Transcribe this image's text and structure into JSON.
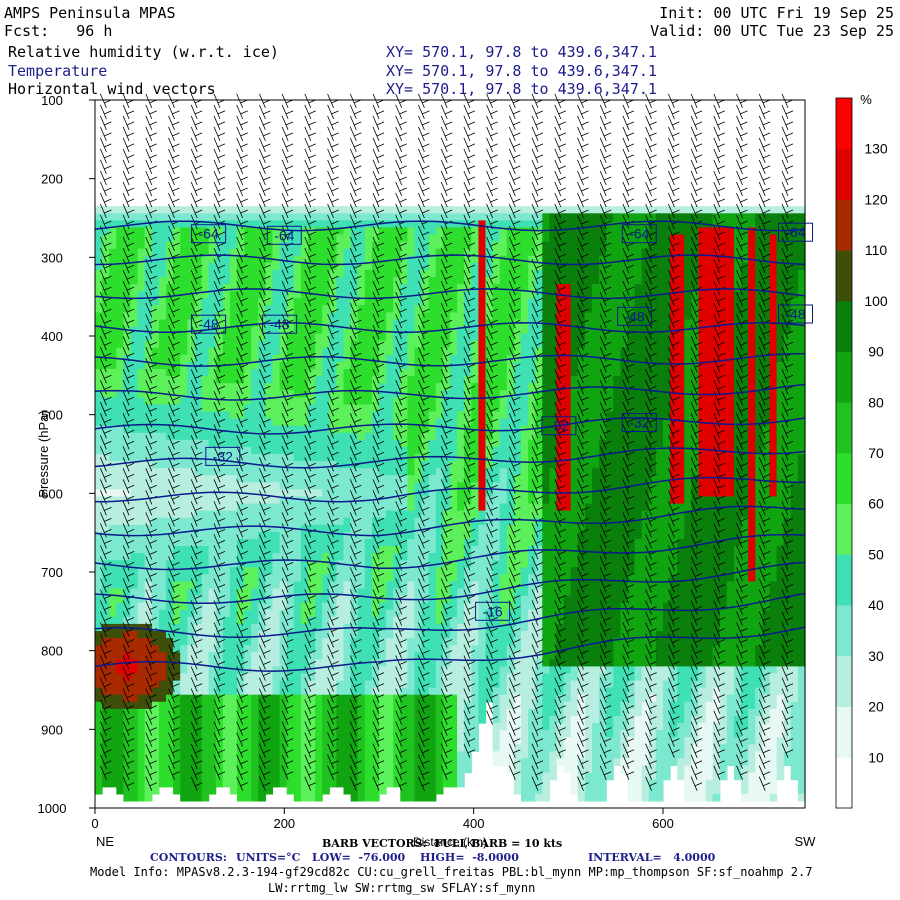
{
  "header": {
    "model": "AMPS Peninsula MPAS",
    "fcst": "Fcst:   96 h",
    "init": "Init: 00 UTC Fri 19 Sep 25",
    "valid": "Valid: 00 UTC Tue 23 Sep 25",
    "fields": [
      {
        "name": "Relative humidity (w.r.t. ice)",
        "xy": "XY= 570.1, 97.8 to 439.6,347.1"
      },
      {
        "name": "Temperature",
        "xy": "XY= 570.1, 97.8 to 439.6,347.1"
      },
      {
        "name": "Horizontal wind vectors",
        "xy": "XY= 570.1, 97.8 to 439.6,347.1"
      }
    ]
  },
  "chart_data": {
    "type": "heatmap",
    "xlabel": "Distance (km)",
    "ylabel": "Pressure (hPa)",
    "xlim": [
      0,
      750
    ],
    "ylim": [
      1000,
      100
    ],
    "x_ticks": [
      0,
      200,
      400,
      600
    ],
    "y_ticks": [
      100,
      200,
      300,
      400,
      500,
      600,
      700,
      800,
      900,
      1000
    ],
    "x_end_labels": {
      "left": "NE",
      "right": "SW"
    },
    "colorbar": {
      "unit": "%",
      "levels": [
        10,
        20,
        30,
        40,
        50,
        60,
        70,
        80,
        90,
        100,
        110,
        120,
        130
      ],
      "colors": [
        "#ffffff",
        "#e8f8f4",
        "#b8eedf",
        "#7de8d0",
        "#3ee0b4",
        "#5cf05a",
        "#2dde2d",
        "#1fc21f",
        "#11a411",
        "#0b7f0b",
        "#3e4f0a",
        "#a82a00",
        "#e00000",
        "#ff0000"
      ]
    },
    "contours": {
      "field": "Temperature",
      "units": "°C",
      "low": -76.0,
      "high": -8.0,
      "interval": 4.0,
      "labels": [
        {
          "text": "-64",
          "x": 120,
          "p": 270
        },
        {
          "text": "-64",
          "x": 200,
          "p": 272
        },
        {
          "text": "-64",
          "x": 575,
          "p": 270
        },
        {
          "text": "-64",
          "x": 740,
          "p": 268
        },
        {
          "text": "-48",
          "x": 120,
          "p": 385
        },
        {
          "text": "-48",
          "x": 195,
          "p": 385
        },
        {
          "text": "-48",
          "x": 570,
          "p": 375
        },
        {
          "text": "-48",
          "x": 740,
          "p": 372
        },
        {
          "text": "-32",
          "x": 135,
          "p": 553
        },
        {
          "text": "-32",
          "x": 490,
          "p": 514
        },
        {
          "text": "-32",
          "x": 575,
          "p": 510
        },
        {
          "text": "-16",
          "x": 420,
          "p": 750
        }
      ]
    }
  },
  "footer": {
    "barb": "BARB VECTORS:  FULL BARB = 10 kts",
    "contours_label": "CONTOURS:",
    "units": "UNITS=°C",
    "low": "LOW=  -76.000",
    "high": "HIGH=  -8.0000",
    "interval": "INTERVAL=   4.0000",
    "model_info": "Model Info: MPASv8.2.3-194-gf29cd82c CU:cu_grell_freitas PBL:bl_mynn MP:mp_thompson SF:sf_noahmp 2.7",
    "model_info2": "LW:rrtmg_lw SW:rrtmg_sw SFLAY:sf_mynn"
  }
}
